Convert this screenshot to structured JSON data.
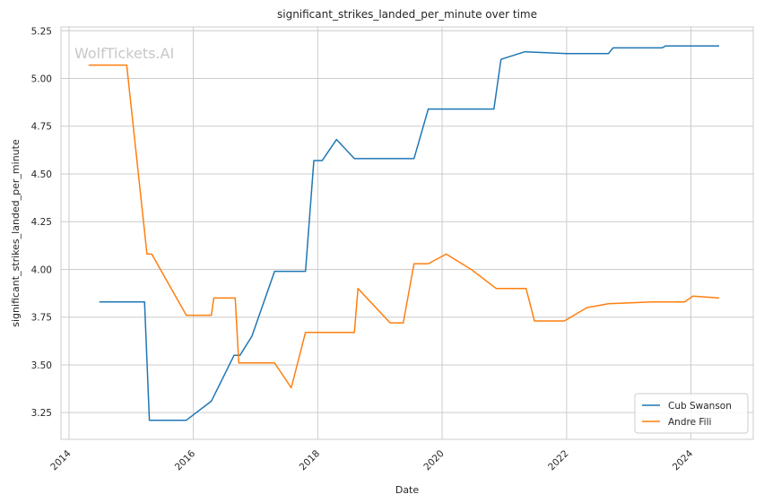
{
  "chart_data": {
    "type": "line",
    "title": "significant_strikes_landed_per_minute over time",
    "xlabel": "Date",
    "ylabel": "significant_strikes_landed_per_minute",
    "watermark": "WolfTickets.AI",
    "x_tick_labels": [
      "2014",
      "2016",
      "2018",
      "2020",
      "2022",
      "2024"
    ],
    "y_tick_labels": [
      "3.25",
      "3.50",
      "3.75",
      "4.00",
      "4.25",
      "4.50",
      "4.75",
      "5.00",
      "5.25"
    ],
    "xlim": [
      "2013-11-15",
      "2025-01-01"
    ],
    "ylim": [
      3.11,
      5.27
    ],
    "grid": true,
    "legend_position": "bottom-right",
    "series": [
      {
        "name": "Cub Swanson",
        "color": "#1f77b4",
        "points": [
          [
            "2014-06-28",
            3.83
          ],
          [
            "2015-03-21",
            3.83
          ],
          [
            "2015-04-18",
            3.21
          ],
          [
            "2015-11-21",
            3.21
          ],
          [
            "2016-04-16",
            3.31
          ],
          [
            "2016-08-27",
            3.55
          ],
          [
            "2016-10-01",
            3.55
          ],
          [
            "2016-12-10",
            3.65
          ],
          [
            "2017-04-22",
            3.99
          ],
          [
            "2017-10-21",
            3.99
          ],
          [
            "2017-12-09",
            4.57
          ],
          [
            "2018-01-27",
            4.57
          ],
          [
            "2018-04-21",
            4.68
          ],
          [
            "2018-08-04",
            4.58
          ],
          [
            "2019-02-23",
            4.58
          ],
          [
            "2019-07-20",
            4.58
          ],
          [
            "2019-10-12",
            4.84
          ],
          [
            "2020-10-31",
            4.84
          ],
          [
            "2020-12-12",
            5.1
          ],
          [
            "2021-05-01",
            5.14
          ],
          [
            "2022-01-01",
            5.13
          ],
          [
            "2022-09-03",
            5.13
          ],
          [
            "2022-10-01",
            5.16
          ],
          [
            "2023-07-15",
            5.16
          ],
          [
            "2023-08-05",
            5.17
          ],
          [
            "2024-06-15",
            5.17
          ]
        ]
      },
      {
        "name": "Andre Fili",
        "color": "#ff7f0e",
        "points": [
          [
            "2014-04-26",
            5.07
          ],
          [
            "2014-12-06",
            5.07
          ],
          [
            "2015-04-04",
            4.08
          ],
          [
            "2015-05-02",
            4.08
          ],
          [
            "2015-11-21",
            3.76
          ],
          [
            "2016-04-16",
            3.76
          ],
          [
            "2016-04-30",
            3.85
          ],
          [
            "2016-09-03",
            3.85
          ],
          [
            "2016-09-24",
            3.51
          ],
          [
            "2017-04-22",
            3.51
          ],
          [
            "2017-07-29",
            3.38
          ],
          [
            "2017-10-21",
            3.67
          ],
          [
            "2018-08-04",
            3.67
          ],
          [
            "2018-08-25",
            3.9
          ],
          [
            "2019-03-02",
            3.72
          ],
          [
            "2019-05-18",
            3.72
          ],
          [
            "2019-07-20",
            4.03
          ],
          [
            "2019-10-12",
            4.03
          ],
          [
            "2020-01-25",
            4.08
          ],
          [
            "2020-06-20",
            4.0
          ],
          [
            "2020-11-14",
            3.9
          ],
          [
            "2021-05-08",
            3.9
          ],
          [
            "2021-06-26",
            3.73
          ],
          [
            "2021-12-18",
            3.73
          ],
          [
            "2022-04-30",
            3.8
          ],
          [
            "2022-09-03",
            3.82
          ],
          [
            "2023-05-20",
            3.83
          ],
          [
            "2023-11-25",
            3.83
          ],
          [
            "2024-01-13",
            3.86
          ],
          [
            "2024-06-15",
            3.85
          ]
        ]
      }
    ]
  }
}
